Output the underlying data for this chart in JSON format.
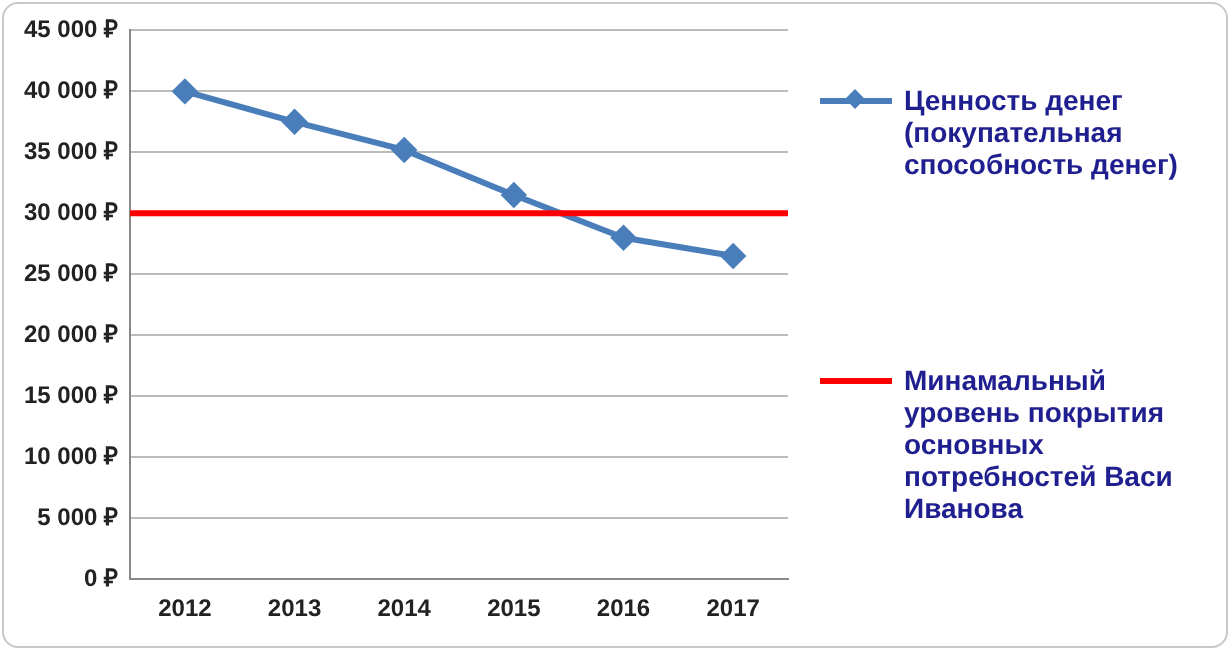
{
  "chart_data": {
    "type": "line",
    "categories": [
      "2012",
      "2013",
      "2014",
      "2015",
      "2016",
      "2017"
    ],
    "series": [
      {
        "name": "Ценность денег (покупательная способность денег)",
        "color": "#4a7ebb",
        "values": [
          40000,
          37500,
          35200,
          31500,
          28000,
          26500
        ]
      }
    ],
    "ylim": [
      0,
      45000
    ],
    "yticks": [
      {
        "value": 0,
        "label": "0 ₽"
      },
      {
        "value": 5000,
        "label": "5 000 ₽"
      },
      {
        "value": 10000,
        "label": "10 000 ₽"
      },
      {
        "value": 15000,
        "label": "15 000 ₽"
      },
      {
        "value": 20000,
        "label": "20 000 ₽"
      },
      {
        "value": 25000,
        "label": "25 000 ₽"
      },
      {
        "value": 30000,
        "label": "30 000 ₽"
      },
      {
        "value": 35000,
        "label": "35 000 ₽"
      },
      {
        "value": 40000,
        "label": "40 000 ₽"
      },
      {
        "value": 45000,
        "label": "45 000 ₽"
      }
    ],
    "ref_lines": [
      {
        "axis": "y",
        "value": 30000,
        "label": "Минамальный уровень покрытия основных потребностей Васи Иванова",
        "color": "#ff0000"
      }
    ],
    "grid": "y",
    "legend": "right",
    "marker": "diamond"
  }
}
